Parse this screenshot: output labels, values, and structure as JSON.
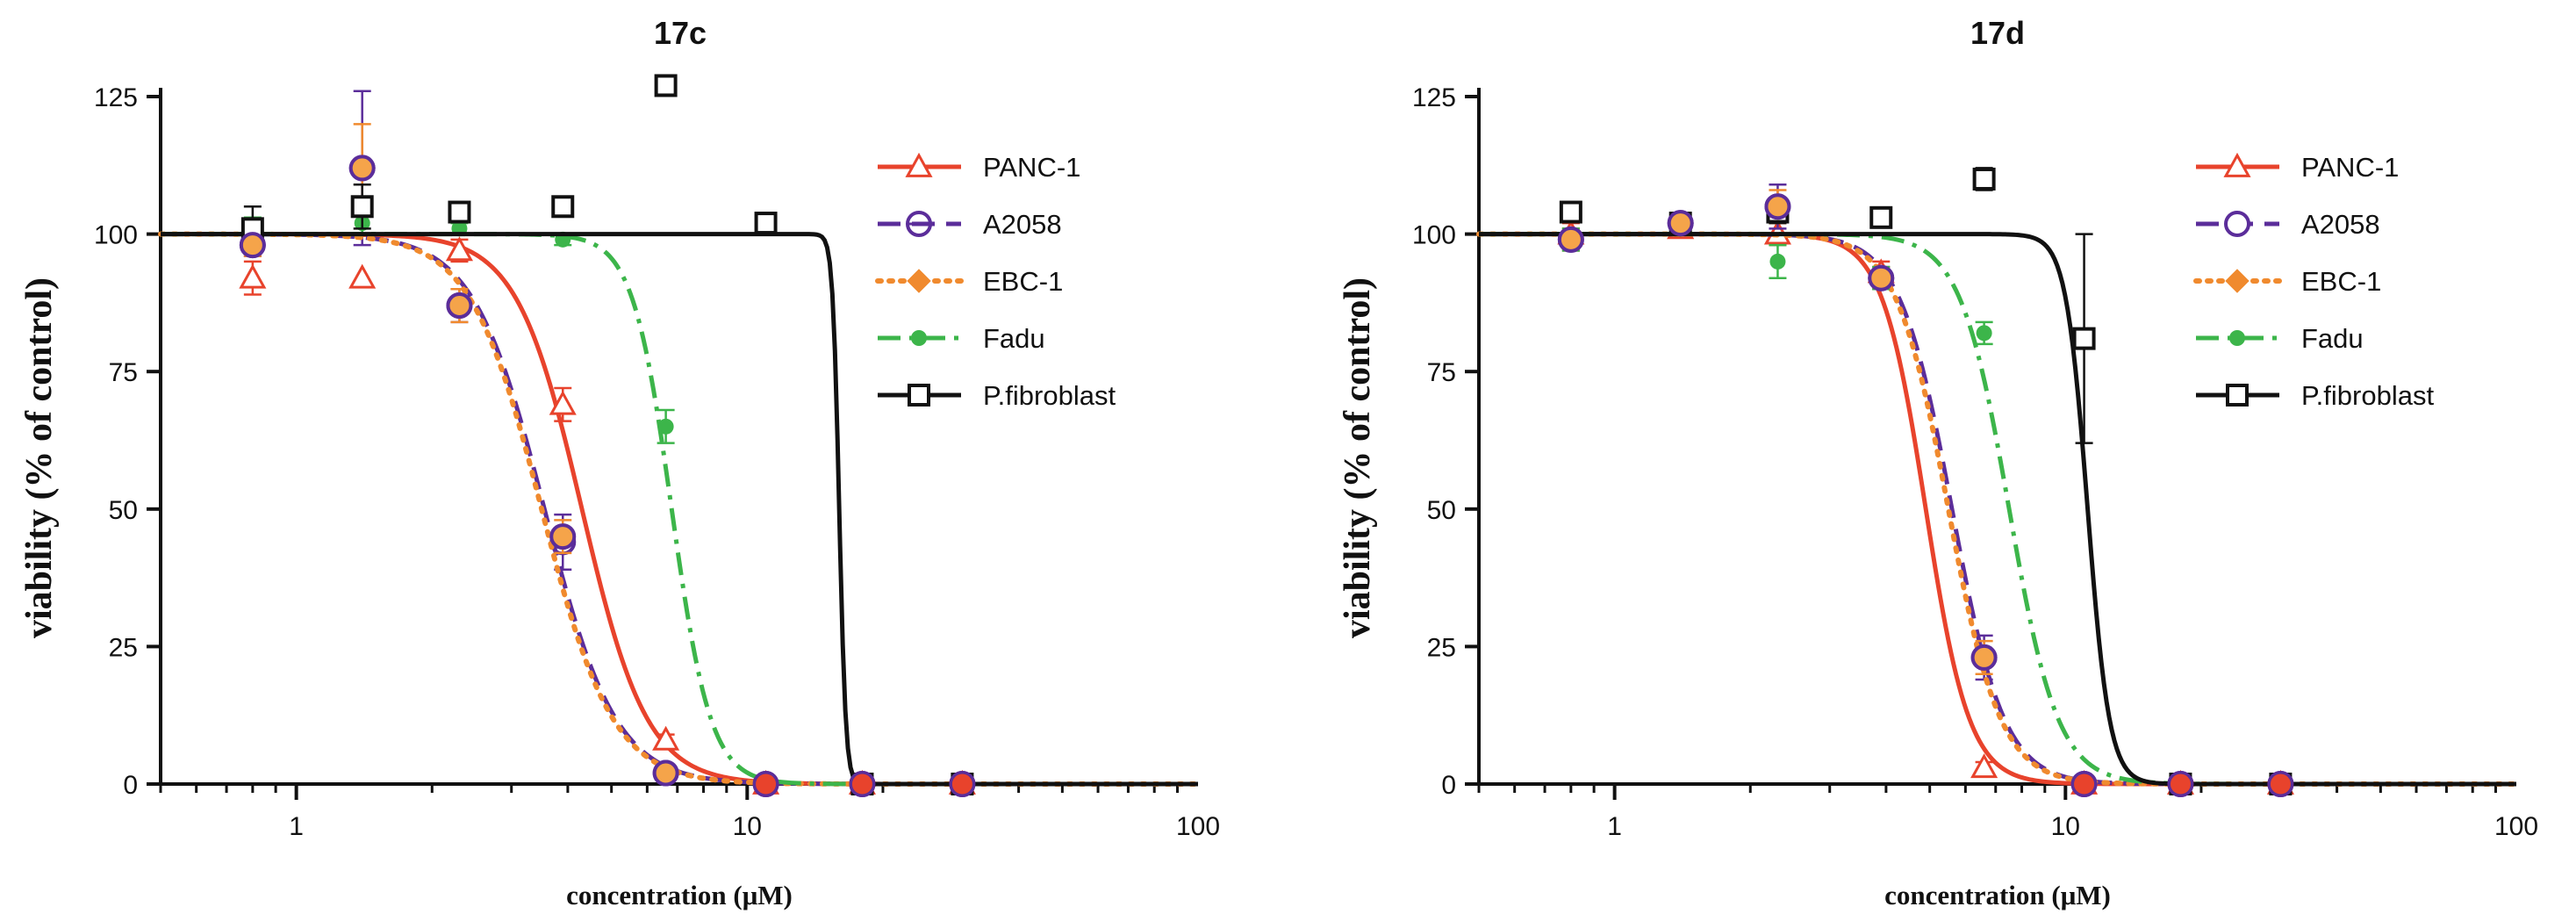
{
  "chart_data": [
    {
      "type": "line",
      "title": "17c",
      "xlabel": "concentration (μM)",
      "ylabel": "viability (% of control)",
      "x_scale": "log",
      "xlim": [
        0.5,
        100
      ],
      "ylim": [
        0,
        125
      ],
      "x_ticks": [
        1,
        10,
        100
      ],
      "x_tick_labels": [
        "1",
        "10",
        "100"
      ],
      "y_ticks": [
        0,
        25,
        50,
        75,
        100,
        125
      ],
      "y_tick_labels": [
        "0",
        "25",
        "50",
        "75",
        "100",
        "125"
      ],
      "legend_position": "top-right",
      "series": [
        {
          "name": "PANC-1",
          "color": "#e8432c",
          "line": "solid",
          "marker": "open-triangle",
          "fit": {
            "ec50": 4.3,
            "hill": 6.0
          },
          "points": [
            {
              "x": 0.8,
              "y": 92,
              "err": 3
            },
            {
              "x": 1.4,
              "y": 92,
              "err": 0
            },
            {
              "x": 2.3,
              "y": 97,
              "err": 2
            },
            {
              "x": 3.9,
              "y": 69,
              "err": 3
            },
            {
              "x": 6.6,
              "y": 8,
              "err": 1
            },
            {
              "x": 11,
              "y": 0,
              "err": 0
            },
            {
              "x": 18,
              "y": 0,
              "err": 0
            },
            {
              "x": 30,
              "y": 0,
              "err": 0
            }
          ]
        },
        {
          "name": "A2058",
          "color": "#5b2d9a",
          "line": "dash",
          "marker": "open-circle-bar",
          "fit": {
            "ec50": 3.55,
            "hill": 5.5
          },
          "points": [
            {
              "x": 0.8,
              "y": 98,
              "err": 2
            },
            {
              "x": 1.4,
              "y": 112,
              "err": 14
            },
            {
              "x": 2.3,
              "y": 87,
              "err": 3
            },
            {
              "x": 3.9,
              "y": 44,
              "err": 5
            },
            {
              "x": 6.6,
              "y": 2,
              "err": 1
            },
            {
              "x": 11,
              "y": 0,
              "err": 0
            },
            {
              "x": 18,
              "y": 0,
              "err": 0
            },
            {
              "x": 30,
              "y": 0,
              "err": 0
            }
          ]
        },
        {
          "name": "EBC-1",
          "color": "#f08a2e",
          "line": "dot",
          "marker": "filled-diamond",
          "fit": {
            "ec50": 3.5,
            "hill": 5.5
          },
          "points": [
            {
              "x": 0.8,
              "y": 98,
              "err": 2
            },
            {
              "x": 1.4,
              "y": 112,
              "err": 8
            },
            {
              "x": 2.3,
              "y": 87,
              "err": 3
            },
            {
              "x": 3.9,
              "y": 45,
              "err": 3
            },
            {
              "x": 6.6,
              "y": 2,
              "err": 1
            },
            {
              "x": 11,
              "y": 0,
              "err": 0
            },
            {
              "x": 18,
              "y": 0,
              "err": 0
            },
            {
              "x": 30,
              "y": 0,
              "err": 0
            }
          ]
        },
        {
          "name": "Fadu",
          "color": "#3cb54a",
          "line": "dashdot",
          "marker": "filled-circle",
          "fit": {
            "ec50": 6.8,
            "hill": 10.0
          },
          "points": [
            {
              "x": 0.8,
              "y": 101,
              "err": 2
            },
            {
              "x": 1.4,
              "y": 102,
              "err": 2
            },
            {
              "x": 2.3,
              "y": 101,
              "err": 1
            },
            {
              "x": 3.9,
              "y": 99,
              "err": 1
            },
            {
              "x": 6.6,
              "y": 65,
              "err": 3
            },
            {
              "x": 11,
              "y": 0,
              "err": 0
            },
            {
              "x": 18,
              "y": 0,
              "err": 0
            },
            {
              "x": 30,
              "y": 0,
              "err": 0
            }
          ]
        },
        {
          "name": "P.fibroblast",
          "color": "#111111",
          "line": "solid",
          "marker": "open-square",
          "fit": {
            "ec50": 16.0,
            "hill": 60.0
          },
          "points": [
            {
              "x": 0.8,
              "y": 101,
              "err": 4
            },
            {
              "x": 1.4,
              "y": 105,
              "err": 4
            },
            {
              "x": 2.3,
              "y": 104,
              "err": 1
            },
            {
              "x": 3.9,
              "y": 105,
              "err": 1
            },
            {
              "x": 6.6,
              "y": 127,
              "err": 1
            },
            {
              "x": 11,
              "y": 102,
              "err": 1
            },
            {
              "x": 18,
              "y": 0,
              "err": 0
            },
            {
              "x": 30,
              "y": 0,
              "err": 0
            }
          ]
        }
      ]
    },
    {
      "type": "line",
      "title": "17d",
      "xlabel": "concentration (μM)",
      "ylabel": "viability (% of control)",
      "x_scale": "log",
      "xlim": [
        0.5,
        100
      ],
      "ylim": [
        0,
        125
      ],
      "x_ticks": [
        1,
        10,
        100
      ],
      "x_tick_labels": [
        "1",
        "10",
        "100"
      ],
      "y_ticks": [
        0,
        25,
        50,
        75,
        100,
        125
      ],
      "y_tick_labels": [
        "0",
        "25",
        "50",
        "75",
        "100",
        "125"
      ],
      "legend_position": "top-right",
      "series": [
        {
          "name": "PANC-1",
          "color": "#e8432c",
          "line": "solid",
          "marker": "open-triangle",
          "fit": {
            "ec50": 4.9,
            "hill": 9.0
          },
          "points": [
            {
              "x": 0.8,
              "y": 100,
              "err": 2
            },
            {
              "x": 1.4,
              "y": 101,
              "err": 1
            },
            {
              "x": 2.3,
              "y": 100,
              "err": 2
            },
            {
              "x": 3.9,
              "y": 93,
              "err": 2
            },
            {
              "x": 6.6,
              "y": 3,
              "err": 1
            },
            {
              "x": 11,
              "y": 0,
              "err": 0
            },
            {
              "x": 18,
              "y": 0,
              "err": 0
            },
            {
              "x": 30,
              "y": 0,
              "err": 0
            }
          ]
        },
        {
          "name": "A2058",
          "color": "#5b2d9a",
          "line": "dash",
          "marker": "open-circle",
          "fit": {
            "ec50": 5.6,
            "hill": 7.5
          },
          "points": [
            {
              "x": 0.8,
              "y": 99,
              "err": 2
            },
            {
              "x": 1.4,
              "y": 102,
              "err": 1
            },
            {
              "x": 2.3,
              "y": 105,
              "err": 4
            },
            {
              "x": 3.9,
              "y": 92,
              "err": 2
            },
            {
              "x": 6.6,
              "y": 23,
              "err": 4
            },
            {
              "x": 11,
              "y": 0,
              "err": 0
            },
            {
              "x": 18,
              "y": 0,
              "err": 0
            },
            {
              "x": 30,
              "y": 0,
              "err": 0
            }
          ]
        },
        {
          "name": "EBC-1",
          "color": "#f08a2e",
          "line": "dot",
          "marker": "filled-diamond",
          "fit": {
            "ec50": 5.5,
            "hill": 7.5
          },
          "points": [
            {
              "x": 0.8,
              "y": 99,
              "err": 2
            },
            {
              "x": 1.4,
              "y": 102,
              "err": 1
            },
            {
              "x": 2.3,
              "y": 105,
              "err": 3
            },
            {
              "x": 3.9,
              "y": 92,
              "err": 2
            },
            {
              "x": 6.6,
              "y": 23,
              "err": 3
            },
            {
              "x": 11,
              "y": 0,
              "err": 0
            },
            {
              "x": 18,
              "y": 0,
              "err": 0
            },
            {
              "x": 30,
              "y": 0,
              "err": 0
            }
          ]
        },
        {
          "name": "Fadu",
          "color": "#3cb54a",
          "line": "dashdot",
          "marker": "filled-circle",
          "fit": {
            "ec50": 7.5,
            "hill": 8.0
          },
          "points": [
            {
              "x": 0.8,
              "y": 99,
              "err": 2
            },
            {
              "x": 1.4,
              "y": 101,
              "err": 1
            },
            {
              "x": 2.3,
              "y": 95,
              "err": 3
            },
            {
              "x": 3.9,
              "y": 92,
              "err": 2
            },
            {
              "x": 6.6,
              "y": 82,
              "err": 2
            },
            {
              "x": 11,
              "y": 0,
              "err": 0
            },
            {
              "x": 18,
              "y": 0,
              "err": 0
            },
            {
              "x": 30,
              "y": 0,
              "err": 0
            }
          ]
        },
        {
          "name": "P.fibroblast",
          "color": "#111111",
          "line": "solid",
          "marker": "open-square",
          "fit": {
            "ec50": 11.2,
            "hill": 18.0
          },
          "points": [
            {
              "x": 0.8,
              "y": 104,
              "err": 1
            },
            {
              "x": 1.4,
              "y": 102,
              "err": 1
            },
            {
              "x": 2.3,
              "y": 104,
              "err": 2
            },
            {
              "x": 3.9,
              "y": 103,
              "err": 1
            },
            {
              "x": 6.6,
              "y": 110,
              "err": 2
            },
            {
              "x": 11,
              "y": 81,
              "err": 19
            },
            {
              "x": 18,
              "y": 0,
              "err": 0
            },
            {
              "x": 30,
              "y": 0,
              "err": 0
            }
          ]
        }
      ]
    }
  ]
}
